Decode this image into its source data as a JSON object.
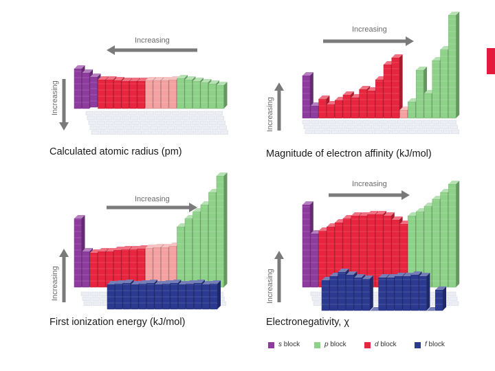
{
  "colors": {
    "s_block": "#8e3b9e",
    "p_block": "#8ed28a",
    "d_block": "#e8253f",
    "d_block_light": "#f3a1a1",
    "f_block": "#2b3990",
    "arrow": "#7a7a7a",
    "grid": "#d4d8e4",
    "edge_bar": "#e31c3d"
  },
  "panels": [
    {
      "caption": "Calculated atomic radius (pm)",
      "horizontal_label": "Increasing",
      "horizontal_direction": "left",
      "vertical_label": "Increasing",
      "vertical_direction": "down"
    },
    {
      "caption": "Magnitude of electron affinity (kJ/mol)",
      "horizontal_label": "Increasing",
      "horizontal_direction": "right",
      "vertical_label": "Increasing",
      "vertical_direction": "up"
    },
    {
      "caption": "First ionization energy (kJ/mol)",
      "horizontal_label": "Increasing",
      "horizontal_direction": "right",
      "vertical_label": "Increasing",
      "vertical_direction": "up"
    },
    {
      "caption": "Electronegativity, χ",
      "horizontal_label": "Increasing",
      "horizontal_direction": "right",
      "vertical_label": "Increasing",
      "vertical_direction": "up"
    }
  ],
  "legend": [
    {
      "prefix": "s",
      "suffix": " block",
      "color_key": "s_block"
    },
    {
      "prefix": "p",
      "suffix": " block",
      "color_key": "p_block"
    },
    {
      "prefix": "d",
      "suffix": " block",
      "color_key": "d_block"
    },
    {
      "prefix": "f",
      "suffix": " block",
      "color_key": "f_block"
    }
  ]
}
